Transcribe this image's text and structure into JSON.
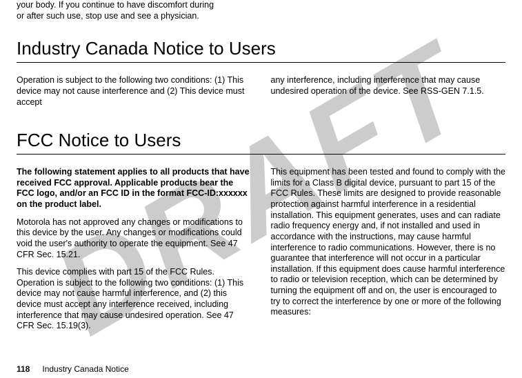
{
  "watermark": "DRAFT",
  "intro_fragment": "your body. If you continue to have discomfort during or after such use, stop use and see a physician.",
  "section1": {
    "title": "Industry Canada Notice to Users",
    "col1": "Operation is subject to the following two conditions: (1) This device may not cause interference and (2) This device must accept",
    "col2": "any interference, including interference that may cause undesired operation of the device. See RSS-GEN 7.1.5."
  },
  "section2": {
    "title": "FCC Notice to Users",
    "col1_p1": "The following statement applies to all products that have received FCC approval. Applicable products bear the FCC logo, and/or an FCC ID in the format FCC-ID:xxxxxx on the product label.",
    "col1_p2": "Motorola has not approved any changes or modifications to this device by the user. Any changes or modifications could void the user's authority to operate the equipment. See 47 CFR Sec. 15.21.",
    "col1_p3": "This device complies with part 15 of the FCC Rules. Operation is subject to the following two conditions: (1) This device may not cause harmful interference, and (2) this device must accept any interference received, including interference that may cause undesired operation. See 47 CFR Sec. 15.19(3).",
    "col2_p1": "This equipment has been tested and found to comply with the limits for a Class B digital device, pursuant to part 15 of the FCC Rules. These limits are designed to provide reasonable protection against harmful interference in a residential installation. This equipment generates, uses and can radiate radio frequency energy and, if not installed and used in accordance with the instructions, may cause harmful interference to radio communications. However, there is no guarantee that interference will not occur in a particular installation. If this equipment does cause harmful interference to radio or television reception, which can be determined by turning the equipment off and on, the user is encouraged to try to correct the interference by one or more of the following measures:"
  },
  "footer": {
    "page_number": "118",
    "running_head": "Industry Canada Notice"
  }
}
